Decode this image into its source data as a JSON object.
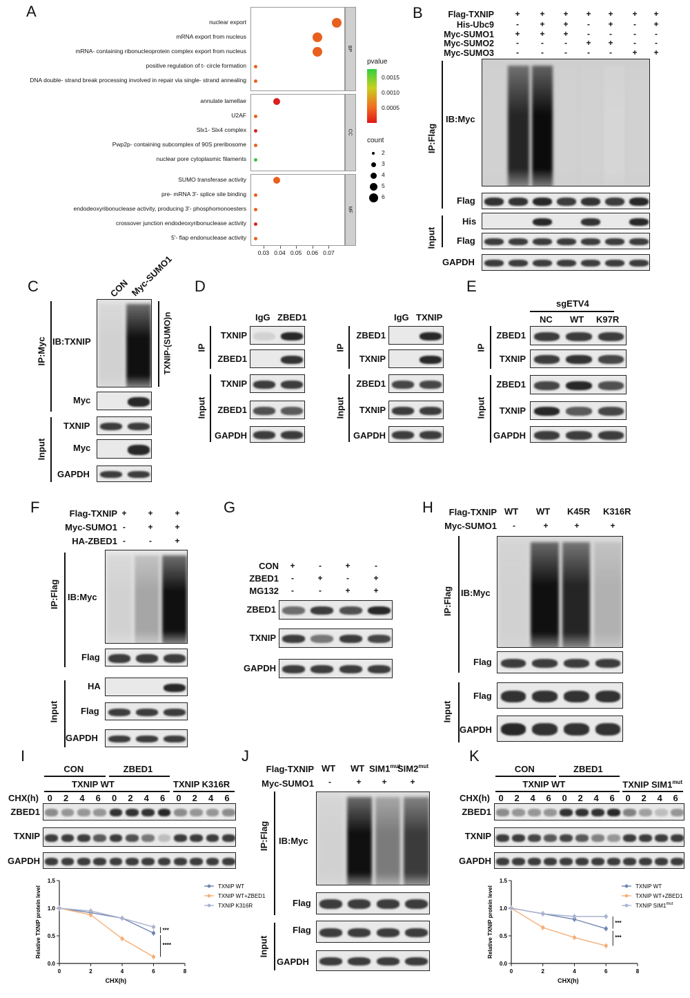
{
  "panels": {
    "A": "A",
    "B": "B",
    "C": "C",
    "D": "D",
    "E": "E",
    "F": "F",
    "G": "G",
    "H": "H",
    "I": "I",
    "J": "J",
    "K": "K"
  },
  "panelA": {
    "groups": [
      {
        "tag": "BP",
        "terms": [
          {
            "label": "nuclear export",
            "x": 0.075,
            "count": 6,
            "color": "#e86020"
          },
          {
            "label": "mRNA export from nucleus",
            "x": 0.063,
            "count": 5,
            "color": "#e86020"
          },
          {
            "label": "mRNA- containing ribonucleoprotein complex export from nucleus",
            "x": 0.063,
            "count": 5,
            "color": "#e86020"
          },
          {
            "label": "positive regulation of t- circle formation",
            "x": 0.025,
            "count": 1,
            "color": "#e86020"
          },
          {
            "label": "DNA double- strand break processing involved in repair via single- strand annealing",
            "x": 0.025,
            "count": 1,
            "color": "#e86020"
          }
        ]
      },
      {
        "tag": "CC",
        "terms": [
          {
            "label": "annulate lamellae",
            "x": 0.038,
            "count": 3,
            "color": "#d82020"
          },
          {
            "label": "U2AF",
            "x": 0.025,
            "count": 1,
            "color": "#e86020"
          },
          {
            "label": "Slx1- Slx4 complex",
            "x": 0.025,
            "count": 1,
            "color": "#d82020"
          },
          {
            "label": "Pwp2p- containing subcomplex of 90S preribosome",
            "x": 0.025,
            "count": 1,
            "color": "#e86020"
          },
          {
            "label": "nuclear pore cytoplasmic filaments",
            "x": 0.025,
            "count": 1,
            "color": "#40c040"
          }
        ]
      },
      {
        "tag": "MF",
        "terms": [
          {
            "label": "SUMO transferase activity",
            "x": 0.038,
            "count": 3,
            "color": "#e86020"
          },
          {
            "label": "pre- mRNA 3'- splice site binding",
            "x": 0.025,
            "count": 1,
            "color": "#e86020"
          },
          {
            "label": "endodeoxyribonuclease activity, producing 3'- phosphomonoesters",
            "x": 0.025,
            "count": 1,
            "color": "#e86020"
          },
          {
            "label": "crossover junction endodeoxyribonuclease activity",
            "x": 0.025,
            "count": 1,
            "color": "#d82020"
          },
          {
            "label": "5'- flap endonuclease activity",
            "x": 0.025,
            "count": 1,
            "color": "#e86020"
          }
        ]
      }
    ],
    "xticks": [
      "0.03",
      "0.04",
      "0.05",
      "0.06",
      "0.07"
    ],
    "xtick_values": [
      0.03,
      0.04,
      0.05,
      0.06,
      0.07
    ],
    "xlim": [
      0.022,
      0.08
    ],
    "pvalue_title": "pvalue",
    "pvalue_ticks": [
      "0.0015",
      "0.0010",
      "0.0005"
    ],
    "count_title": "count",
    "count_ticks": [
      "2",
      "3",
      "4",
      "5",
      "6"
    ]
  },
  "panelB": {
    "rows": [
      {
        "label": "Flag-TXNIP",
        "marks": [
          "+",
          "+",
          "+",
          "+",
          "+",
          "+",
          "+"
        ]
      },
      {
        "label": "His-Ubc9",
        "marks": [
          "-",
          "+",
          "+",
          "-",
          "+",
          "-",
          "+"
        ]
      },
      {
        "label": "Myc-SUMO1",
        "marks": [
          "+",
          "+",
          "+",
          "-",
          "-",
          "-",
          "-"
        ]
      },
      {
        "label": "Myc-SUMO2",
        "marks": [
          "-",
          "-",
          "-",
          "+",
          "+",
          "-",
          "-"
        ]
      },
      {
        "label": "Myc-SUMO3",
        "marks": [
          "-",
          "-",
          "-",
          "-",
          "-",
          "+",
          "+"
        ]
      }
    ],
    "ip": "IP:Flag",
    "ib": "IB:Myc",
    "flag": "Flag",
    "input": "Input",
    "his": "His",
    "flag2": "Flag",
    "gapdh": "GAPDH"
  },
  "panelC": {
    "cols": [
      "CON",
      "Myc-SUMO1"
    ],
    "ip": "IP:Myc",
    "ib": "IB:TXNIP",
    "sumo": "TXNIP-(SUMO)n",
    "myc": "Myc",
    "input": "Input",
    "txnip": "TXNIP",
    "myc2": "Myc",
    "gapdh": "GAPDH"
  },
  "panelD": {
    "left": {
      "cols": [
        "IgG",
        "ZBED1"
      ],
      "rows": [
        "TXNIP",
        "ZBED1",
        "TXNIP",
        "ZBED1",
        "GAPDH"
      ]
    },
    "right": {
      "cols": [
        "IgG",
        "TXNIP"
      ],
      "rows": [
        "ZBED1",
        "TXNIP",
        "ZBED1",
        "TXNIP",
        "GAPDH"
      ]
    },
    "ip": "IP",
    "input": "Input"
  },
  "panelE": {
    "head": "sgETV4",
    "cols": [
      "NC",
      "WT",
      "K97R"
    ],
    "rows": [
      "ZBED1",
      "TXNIP",
      "ZBED1",
      "TXNIP",
      "GAPDH"
    ],
    "ip": "IP",
    "input": "Input"
  },
  "panelF": {
    "rows": [
      {
        "label": "Flag-TXNIP",
        "marks": [
          "+",
          "+",
          "+"
        ]
      },
      {
        "label": "Myc-SUMO1",
        "marks": [
          "-",
          "+",
          "+"
        ]
      },
      {
        "label": "HA-ZBED1",
        "marks": [
          "-",
          "-",
          "+"
        ]
      }
    ],
    "ip": "IP:Flag",
    "ib": "IB:Myc",
    "flag": "Flag",
    "input": "Input",
    "ha": "HA",
    "flag2": "Flag",
    "gapdh": "GAPDH"
  },
  "panelG": {
    "rows": [
      {
        "label": "CON",
        "marks": [
          "+",
          "-",
          "+",
          "-"
        ]
      },
      {
        "label": "ZBED1",
        "marks": [
          "-",
          "+",
          "-",
          "+"
        ]
      },
      {
        "label": "MG132",
        "marks": [
          "-",
          "-",
          "+",
          "+"
        ]
      }
    ],
    "blots": [
      "ZBED1",
      "TXNIP",
      "GAPDH"
    ]
  },
  "panelH": {
    "flag_label": "Flag-TXNIP",
    "cols": [
      "WT",
      "WT",
      "K45R",
      "K316R"
    ],
    "myc_label": "Myc-SUMO1",
    "myc_marks": [
      "-",
      "+",
      "+",
      "+"
    ],
    "ip": "IP:Flag",
    "ib": "IB:Myc",
    "flag": "Flag",
    "input": "Input",
    "flag2": "Flag",
    "gapdh": "GAPDH"
  },
  "panelI": {
    "con": "CON",
    "zbed1": "ZBED1",
    "wt": "TXNIP WT",
    "mut": "TXNIP K316R",
    "chx": "CHX(h)",
    "times": [
      "0",
      "2",
      "4",
      "6",
      "0",
      "2",
      "4",
      "6",
      "0",
      "2",
      "4",
      "6"
    ],
    "blots": [
      "ZBED1",
      "TXNIP",
      "GAPDH"
    ],
    "chart_data": {
      "type": "line",
      "x": [
        0,
        2,
        4,
        6
      ],
      "xlim": [
        0,
        8
      ],
      "ylim": [
        0,
        1.5
      ],
      "xticks": [
        "0",
        "2",
        "4",
        "6",
        "8"
      ],
      "yticks": [
        "0.0",
        "0.5",
        "1.0",
        "1.5"
      ],
      "xlabel": "CHX(h)",
      "ylabel": "Relative TXNIP protein level",
      "series": [
        {
          "name": "TXNIP WT",
          "values": [
            1.0,
            0.92,
            0.82,
            0.55
          ],
          "color": "#6f86b0"
        },
        {
          "name": "TXNIP WT+ZBED1",
          "values": [
            1.0,
            0.88,
            0.45,
            0.12
          ],
          "color": "#f3b07a"
        },
        {
          "name": "TXNIP K316R",
          "values": [
            1.0,
            0.95,
            0.82,
            0.66
          ],
          "color": "#aab3cf"
        }
      ],
      "sig": [
        "***",
        "****"
      ]
    }
  },
  "panelJ": {
    "flag_label": "Flag-TXNIP",
    "cols": [
      "WT",
      "WT",
      "SIM1",
      "SIM2"
    ],
    "sup": "mut",
    "myc_label": "Myc-SUMO1",
    "myc_marks": [
      "-",
      "+",
      "+",
      "+"
    ],
    "ip": "IP:Flag",
    "ib": "IB:Myc",
    "flag": "Flag",
    "input": "Input",
    "flag2": "Flag",
    "gapdh": "GAPDH"
  },
  "panelK": {
    "con": "CON",
    "zbed1": "ZBED1",
    "wt": "TXNIP WT",
    "mut": "TXNIP SIM1",
    "sup": "mut",
    "chx": "CHX(h)",
    "times": [
      "0",
      "2",
      "4",
      "6",
      "0",
      "2",
      "4",
      "6",
      "0",
      "2",
      "4",
      "6"
    ],
    "blots": [
      "ZBED1",
      "TXNIP",
      "GAPDH"
    ],
    "chart_data": {
      "type": "line",
      "x": [
        0,
        2,
        4,
        6
      ],
      "xlim": [
        0,
        8
      ],
      "ylim": [
        0,
        1.5
      ],
      "xticks": [
        "0",
        "2",
        "4",
        "6",
        "8"
      ],
      "yticks": [
        "0.0",
        "0.5",
        "1.0",
        "1.5"
      ],
      "xlabel": "CHX(h)",
      "ylabel": "Relative TXNIP protein level",
      "series": [
        {
          "name": "TXNIP WT",
          "values": [
            1.0,
            0.9,
            0.8,
            0.63
          ],
          "color": "#6f86b0"
        },
        {
          "name": "TXNIP WT+ZBED1",
          "values": [
            1.0,
            0.65,
            0.47,
            0.32
          ],
          "color": "#f3b07a"
        },
        {
          "name": "TXNIP SIM1",
          "sup": "mut",
          "values": [
            1.0,
            0.9,
            0.85,
            0.85
          ],
          "color": "#aab3cf"
        }
      ],
      "sig": [
        "***",
        "***"
      ]
    }
  }
}
